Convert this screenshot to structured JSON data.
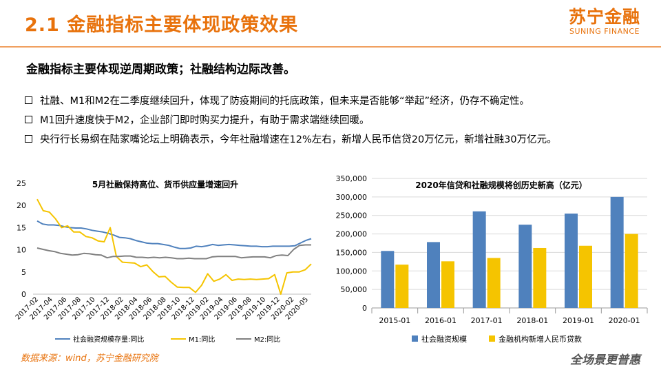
{
  "header": {
    "title": "2.1 金融指标主要体现政策效果",
    "logo_cn": "苏宁金融",
    "logo_en": "SUNING FINANCE"
  },
  "subtitle": "金融指标主要体现逆周期政策；社融结构边际改善。",
  "bullets": [
    "社融、M1和M2在二季度继续回升，体现了防疫期间的托底政策，但未来是否能够“举起”经济，仍存不确定性。",
    "M1回升速度快于M2，企业部门即时购买力提升，有助于需求端继续回暖。",
    "央行行长易纲在陆家嘴论坛上明确表示，今年社融增速在12%左右，新增人民币信贷20万亿元，新增社融30万亿元。"
  ],
  "footer": {
    "source": "数据来源：wind，苏宁金融研究院",
    "logo": "全场景更普惠"
  },
  "colors": {
    "accent": "#e8720c",
    "blue": "#4f81bd",
    "yellow": "#f5c400",
    "gray": "#808080"
  },
  "chart_data": [
    {
      "type": "line",
      "title": "5月社融保持高位、货币供应量增速回升",
      "ylim": [
        0,
        25
      ],
      "yticks": [
        0,
        5,
        10,
        15,
        20,
        25
      ],
      "x_labels": [
        "2017-02",
        "2017-04",
        "2017-06",
        "2017-08",
        "2017-10",
        "2017-12",
        "2018-02",
        "2018-04",
        "2018-06",
        "2018-08",
        "2018-10",
        "2018-12",
        "2019-02",
        "2019-04",
        "2019-06",
        "2019-08",
        "2019-10",
        "2019-12",
        "2020-02",
        "2020-05"
      ],
      "series": [
        {
          "name": "社会融资规模存量:同比",
          "color": "#4f81bd",
          "values": [
            16.5,
            15.8,
            15.6,
            15.6,
            15.5,
            15.2,
            15.0,
            14.9,
            14.9,
            14.7,
            14.4,
            14.2,
            14.0,
            13.7,
            13.3,
            12.8,
            12.7,
            12.5,
            12.1,
            11.8,
            11.5,
            11.4,
            11.4,
            11.2,
            11.0,
            10.6,
            10.3,
            10.3,
            10.4,
            10.8,
            10.7,
            10.9,
            11.2,
            11.0,
            11.1,
            11.2,
            11.1,
            11.0,
            10.9,
            10.8,
            10.8,
            10.7,
            10.7,
            10.8,
            10.8,
            10.8,
            10.8,
            10.9,
            11.5,
            12.1,
            12.5
          ]
        },
        {
          "name": "M1:同比",
          "color": "#f5c400",
          "values": [
            21.4,
            18.8,
            18.5,
            17.0,
            15.0,
            15.4,
            14.0,
            14.0,
            13.0,
            12.7,
            12.0,
            11.8,
            15.0,
            8.5,
            7.2,
            7.1,
            7.0,
            6.2,
            6.6,
            5.1,
            3.9,
            4.0,
            2.7,
            1.6,
            1.5,
            1.5,
            0.4,
            2.0,
            4.6,
            2.9,
            3.4,
            4.4,
            3.1,
            3.4,
            3.3,
            3.4,
            3.3,
            3.4,
            3.5,
            4.4,
            0.0,
            4.8,
            5.0,
            5.0,
            5.5,
            6.8
          ]
        },
        {
          "name": "M2:同比",
          "color": "#808080",
          "values": [
            10.4,
            10.1,
            9.8,
            9.6,
            9.2,
            9.0,
            8.8,
            8.9,
            9.2,
            9.1,
            8.9,
            8.8,
            8.2,
            8.5,
            8.5,
            8.6,
            8.6,
            8.3,
            8.3,
            8.2,
            8.3,
            8.2,
            8.3,
            8.2,
            8.0,
            8.0,
            8.1,
            8.0,
            8.0,
            8.0,
            8.4,
            8.5,
            8.5,
            8.5,
            8.5,
            8.2,
            8.3,
            8.4,
            8.4,
            8.4,
            8.2,
            8.7,
            8.8,
            8.7,
            10.1,
            11.0,
            11.1,
            11.1
          ]
        }
      ]
    },
    {
      "type": "bar",
      "title": "2020年信贷和社融规模将创历史新高（亿元）",
      "categories": [
        "2015-01",
        "2016-01",
        "2017-01",
        "2018-01",
        "2019-01",
        "2020-01"
      ],
      "ylim": [
        0,
        350000
      ],
      "yticks": [
        "0",
        "50,000",
        "100,000",
        "150,000",
        "200,000",
        "250,000",
        "300,000",
        "350,000"
      ],
      "series": [
        {
          "name": "社会融资规模",
          "color": "#4f81bd",
          "values": [
            154000,
            178000,
            261000,
            225000,
            255000,
            300000
          ]
        },
        {
          "name": "金融机构新增人民币贷款",
          "color": "#f5c400",
          "values": [
            117000,
            126000,
            135000,
            162000,
            168000,
            200000
          ]
        }
      ]
    }
  ]
}
